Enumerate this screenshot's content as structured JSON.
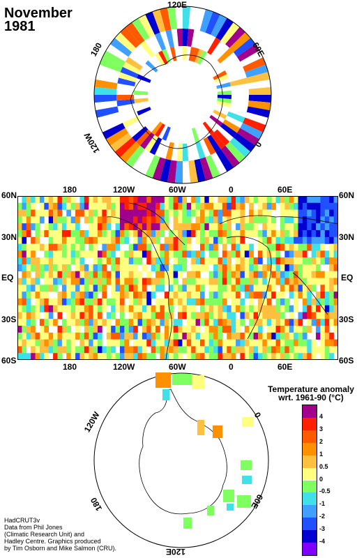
{
  "title": {
    "month": "November",
    "year": "1981"
  },
  "north_polar": {
    "labels": {
      "top": "120E",
      "left_upper": "180",
      "right_upper": "60E",
      "left_lower": "120W",
      "right_lower": "0"
    }
  },
  "main_map": {
    "top_lon_labels": [
      "180",
      "120W",
      "60W",
      "0",
      "60E"
    ],
    "bottom_lon_labels": [
      "180",
      "120W",
      "60W",
      "0",
      "60E"
    ],
    "left_lat_labels": [
      "60N",
      "30N",
      "EQ",
      "30S",
      "60S"
    ],
    "right_lat_labels": [
      "60N",
      "30N",
      "EQ",
      "30S",
      "60S"
    ]
  },
  "south_polar": {
    "labels": {
      "left_upper": "120W",
      "right_upper": "0",
      "left_lower": "180",
      "right_lower": "60E",
      "bottom": "120E"
    }
  },
  "legend": {
    "title_line1": "Temperature anomaly",
    "title_line2": "wrt. 1961-90  (°C)",
    "ticks": [
      "4",
      "3",
      "2",
      "1",
      "0.5",
      "0",
      "-0.5",
      "-1",
      "-2",
      "-3",
      "-4"
    ],
    "colors": [
      "#a0008c",
      "#ff2000",
      "#ff5a00",
      "#ff9000",
      "#ffc040",
      "#ffff80",
      "#80ff60",
      "#40e0e8",
      "#40a0ff",
      "#2050ff",
      "#0000d0",
      "#8000ff"
    ]
  },
  "credit": {
    "line1": "HadCRUT3v",
    "line2": "Data from Phil Jones",
    "line3": "(Climatic Research Unit) and",
    "line4": "Hadley Centre.  Graphics produced",
    "line5": "by Tim Osborn and Mike Salmon (CRU)."
  }
}
